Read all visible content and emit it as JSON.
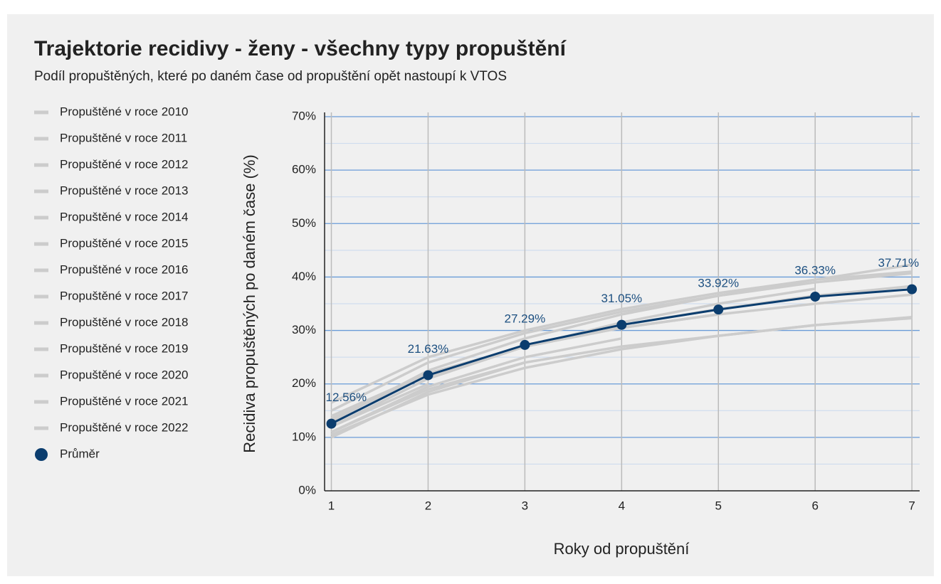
{
  "chart_data": {
    "type": "line",
    "title": "Trajektorie recidivy - ženy - všechny typy propuštění",
    "subtitle": "Podíl propuštěných, které po daném čase od propuštění opět nastoupí k VTOS",
    "x_label": "Roky od propuštění",
    "y_label": "Recidiva propuštěných po daném čase (%)",
    "x": [
      1,
      2,
      3,
      4,
      5,
      6,
      7
    ],
    "xlim": [
      0.93,
      7.08
    ],
    "xticks": [
      1,
      2,
      3,
      4,
      5,
      6,
      7
    ],
    "ylim": [
      0,
      70
    ],
    "yticks": [
      {
        "value": 0,
        "label": "0%"
      },
      {
        "value": 10,
        "label": "10%"
      },
      {
        "value": 20,
        "label": "20%"
      },
      {
        "value": 30,
        "label": "30%"
      },
      {
        "value": 40,
        "label": "40%"
      },
      {
        "value": 50,
        "label": "50%"
      },
      {
        "value": 60,
        "label": "60%"
      },
      {
        "value": 70,
        "label": "70%"
      }
    ],
    "y_minor_ticks": [
      5,
      15,
      25,
      35,
      45,
      55,
      65
    ],
    "grid": true,
    "legend": "left",
    "series": [
      {
        "name": "Propuštěné v roce 2010",
        "color": "#cccccc",
        "values": [
          14,
          22,
          27,
          30.5,
          33,
          35,
          36.7
        ]
      },
      {
        "name": "Propuštěné v roce 2011",
        "color": "#cccccc",
        "values": [
          11,
          19,
          24,
          27,
          29,
          31,
          32.5
        ]
      },
      {
        "name": "Propuštěné v roce 2012",
        "color": "#cccccc",
        "values": [
          10.5,
          18,
          23,
          26.5,
          29,
          31,
          32.3
        ]
      },
      {
        "name": "Propuštěné v roce 2013",
        "color": "#cccccc",
        "values": [
          12,
          21,
          27,
          31,
          34,
          36.5,
          38.3
        ]
      },
      {
        "name": "Propuštěné v roce 2014",
        "color": "#cccccc",
        "values": [
          15,
          24,
          29.5,
          33.5,
          36.5,
          39,
          40.7
        ]
      },
      {
        "name": "Propuštěné v roce 2015",
        "color": "#cccccc",
        "values": [
          16.5,
          25,
          30,
          34,
          37,
          39.5,
          41
        ]
      },
      {
        "name": "Propuštěné v roce 2016",
        "color": "#cccccc",
        "values": [
          13,
          22.5,
          28.5,
          33,
          36.5,
          39.5,
          42.3
        ]
      },
      {
        "name": "Propuštěné v roce 2017",
        "color": "#cccccc",
        "values": [
          12,
          21,
          27,
          31.5,
          35,
          37.8,
          null
        ]
      },
      {
        "name": "Propuštěné v roce 2018",
        "color": "#cccccc",
        "values": [
          13.5,
          21.5,
          27,
          30.5,
          33,
          null,
          null
        ]
      },
      {
        "name": "Propuštěné v roce 2019",
        "color": "#cccccc",
        "values": [
          11,
          19.5,
          25,
          28.5,
          null,
          null,
          null
        ]
      },
      {
        "name": "Propuštěné v roce 2020",
        "color": "#cccccc",
        "values": [
          10,
          18.5,
          24,
          null,
          null,
          null,
          null
        ]
      },
      {
        "name": "Propuštěné v roce 2021",
        "color": "#cccccc",
        "values": [
          12,
          20,
          null,
          null,
          null,
          null,
          null
        ]
      },
      {
        "name": "Propuštěné v roce 2022",
        "color": "#cccccc",
        "values": [
          13,
          null,
          null,
          null,
          null,
          null,
          null
        ]
      },
      {
        "name": "Průměr",
        "color": "#0b3d6e",
        "markers": true,
        "values": [
          12.56,
          21.63,
          27.29,
          31.05,
          33.92,
          36.33,
          37.71
        ],
        "value_labels": [
          "12.56%",
          "21.63%",
          "27.29%",
          "31.05%",
          "33.92%",
          "36.33%",
          "37.71%"
        ]
      }
    ]
  }
}
